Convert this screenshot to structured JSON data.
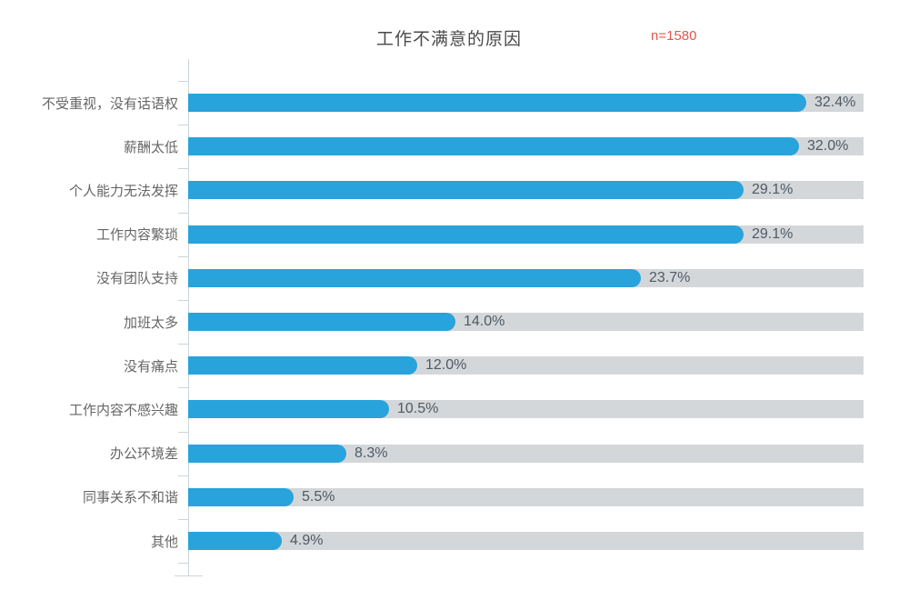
{
  "header": {
    "title": "工作不满意的原因",
    "sample_size": "n=1580"
  },
  "chart_data": {
    "type": "bar",
    "orientation": "horizontal",
    "title": "工作不满意的原因",
    "annotation": "n=1580",
    "categories": [
      "不受重视，没有话语权",
      "薪酬太低",
      "个人能力无法发挥",
      "工作内容繁琐",
      "没有团队支持",
      "加班太多",
      "没有痛点",
      "工作内容不感兴趣",
      "办公环境差",
      "同事关系不和谐",
      "其他"
    ],
    "values": [
      32.4,
      32.0,
      29.1,
      29.1,
      23.7,
      14.0,
      12.0,
      10.5,
      8.3,
      5.5,
      4.9
    ],
    "value_labels": [
      "32.4%",
      "32.0%",
      "29.1%",
      "29.1%",
      "23.7%",
      "14.0%",
      "12.0%",
      "10.5%",
      "8.3%",
      "5.5%",
      "4.9%"
    ],
    "unit": "%",
    "xlim": [
      0,
      35.4
    ],
    "grid": false,
    "legend": false,
    "colors": {
      "bar": "#29a3db",
      "track": "#d4d7d9",
      "axis": "#cbd5da",
      "title_text": "#4a4a4a",
      "annotation_text": "#e2584c",
      "category_text": "#666666",
      "value_text": "#4e5a64"
    }
  }
}
